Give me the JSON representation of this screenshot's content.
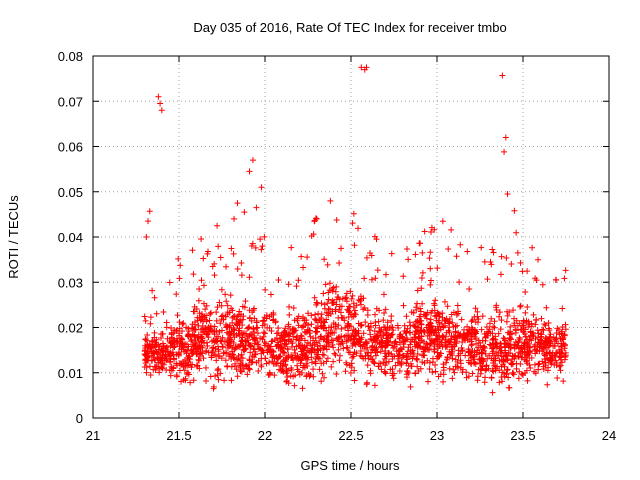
{
  "chart_data": {
    "type": "scatter",
    "title": "Day 035 of 2016, Rate Of TEC Index for receiver tmbo",
    "xlabel": "GPS time / hours",
    "ylabel": "ROTI / TECUs",
    "xlim": [
      21,
      24
    ],
    "ylim": [
      0,
      0.08
    ],
    "xticks": [
      21,
      21.5,
      22,
      22.5,
      23,
      23.5,
      24
    ],
    "xtick_labels": [
      "21",
      "21.5",
      "22",
      "22.5",
      "23",
      "23.5",
      "24"
    ],
    "yticks": [
      0,
      0.01,
      0.02,
      0.03,
      0.04,
      0.05,
      0.06,
      0.07,
      0.08
    ],
    "ytick_labels": [
      "0",
      "0.01",
      "0.02",
      "0.03",
      "0.04",
      "0.05",
      "0.06",
      "0.07",
      "0.08"
    ],
    "grid": true,
    "marker": "plus",
    "color": "#ff0000",
    "series": [
      {
        "name": "ROTI",
        "notable_points": {
          "x": [
            21.31,
            21.32,
            21.33,
            21.38,
            21.39,
            21.4,
            21.82,
            21.84,
            21.88,
            21.91,
            21.93,
            21.95,
            21.98,
            22.56,
            22.58,
            22.59,
            23.38,
            23.39,
            23.4,
            23.41,
            23.45,
            23.47
          ],
          "y": [
            0.04,
            0.0435,
            0.0457,
            0.071,
            0.0695,
            0.068,
            0.044,
            0.0475,
            0.0455,
            0.0545,
            0.057,
            0.0465,
            0.051,
            0.0775,
            0.077,
            0.0775,
            0.0757,
            0.0588,
            0.062,
            0.0495,
            0.0458,
            0.0365
          ]
        },
        "envelope": {
          "x": [
            21.3,
            21.4,
            21.5,
            21.6,
            21.7,
            21.8,
            21.9,
            22.0,
            22.1,
            22.2,
            22.3,
            22.4,
            22.5,
            22.6,
            22.7,
            22.8,
            22.9,
            23.0,
            23.1,
            23.2,
            23.3,
            23.4,
            23.5,
            23.6,
            23.7,
            23.75
          ],
          "center": [
            0.014,
            0.014,
            0.015,
            0.017,
            0.017,
            0.018,
            0.017,
            0.016,
            0.015,
            0.016,
            0.018,
            0.02,
            0.019,
            0.017,
            0.016,
            0.016,
            0.017,
            0.018,
            0.017,
            0.016,
            0.016,
            0.015,
            0.017,
            0.015,
            0.015,
            0.016
          ],
          "spread": [
            0.006,
            0.007,
            0.01,
            0.011,
            0.012,
            0.013,
            0.011,
            0.011,
            0.01,
            0.011,
            0.013,
            0.014,
            0.013,
            0.012,
            0.011,
            0.011,
            0.011,
            0.012,
            0.012,
            0.011,
            0.011,
            0.012,
            0.011,
            0.009,
            0.009,
            0.008
          ]
        },
        "point_count": 2400,
        "random_seed": 35
      }
    ]
  }
}
